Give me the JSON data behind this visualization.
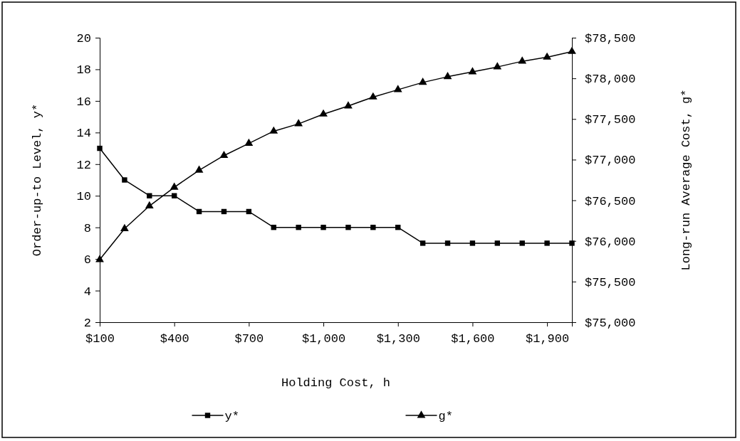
{
  "chart_data": {
    "type": "line",
    "xlabel": "Holding Cost, h",
    "ylabel": "Order-up-to Level, y*",
    "y2label": "Long-run Average Cost, g*",
    "x": [
      100,
      200,
      300,
      400,
      500,
      600,
      700,
      800,
      900,
      1000,
      1100,
      1200,
      1300,
      1400,
      1500,
      1600,
      1700,
      1800,
      1900,
      2000
    ],
    "xlim": [
      100,
      2000
    ],
    "xticks": [
      {
        "value": 100,
        "label": "$100"
      },
      {
        "value": 400,
        "label": "$400"
      },
      {
        "value": 700,
        "label": "$700"
      },
      {
        "value": 1000,
        "label": "$1,000"
      },
      {
        "value": 1300,
        "label": "$1,300"
      },
      {
        "value": 1600,
        "label": "$1,600"
      },
      {
        "value": 1900,
        "label": "$1,900"
      }
    ],
    "ylim": [
      2,
      20
    ],
    "yticks": [
      2,
      4,
      6,
      8,
      10,
      12,
      14,
      16,
      18,
      20
    ],
    "y2lim": [
      75000,
      78500
    ],
    "y2ticks": [
      {
        "value": 75000,
        "label": "$75,000"
      },
      {
        "value": 75500,
        "label": "$75,500"
      },
      {
        "value": 76000,
        "label": "$76,000"
      },
      {
        "value": 76500,
        "label": "$76,500"
      },
      {
        "value": 77000,
        "label": "$77,000"
      },
      {
        "value": 77500,
        "label": "$77,500"
      },
      {
        "value": 78000,
        "label": "$78,000"
      },
      {
        "value": 78500,
        "label": "$78,500"
      }
    ],
    "series": [
      {
        "name": "y*",
        "color": "#000000",
        "marker": "square",
        "values": [
          13,
          11,
          10,
          10,
          9,
          9,
          9,
          8,
          8,
          8,
          8,
          8,
          8,
          7,
          7,
          7,
          7,
          7,
          7,
          7
        ]
      },
      {
        "name": "g*",
        "color": "#000000",
        "marker": "triangle",
        "axis": "y2",
        "values": [
          75770,
          76150,
          76430,
          76660,
          76870,
          77050,
          77200,
          77350,
          77440,
          77560,
          77660,
          77770,
          77860,
          77950,
          78020,
          78080,
          78140,
          78210,
          78260,
          78330
        ]
      }
    ],
    "legend": "bottom",
    "grid": false,
    "line_style": "solid"
  }
}
